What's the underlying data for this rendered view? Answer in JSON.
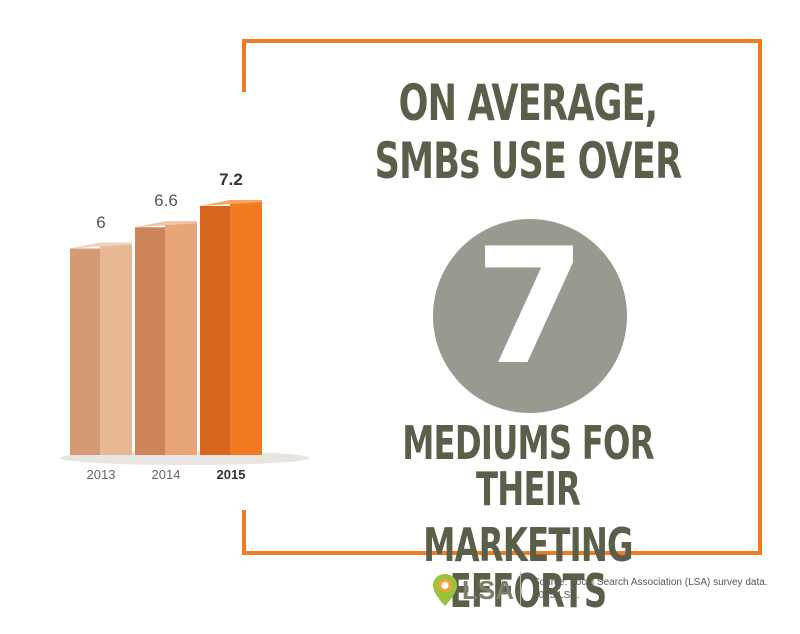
{
  "headline": {
    "top_lines": [
      "ON AVERAGE,",
      "SMBs USE OVER"
    ],
    "big_number": "7",
    "bottom_lines": [
      "MEDIUMS FOR THEIR",
      "MARKETING EFFORTS"
    ]
  },
  "footer": {
    "logo_text": "LSA",
    "source_line1": "Source: Local Search Association (LSA) survey data.",
    "source_line2": "2015 LSA."
  },
  "colors": {
    "accent": "#ef7b23",
    "text": "#5b5f4a",
    "circle": "#999a8f",
    "logo_green": "#9bc23c",
    "logo_gray": "#7a7f6e"
  },
  "chart_data": {
    "type": "bar",
    "categories": [
      "2013",
      "2014",
      "2015"
    ],
    "values": [
      6,
      6.6,
      7.2
    ],
    "value_labels": [
      "6",
      "6.6",
      "7.2"
    ],
    "title": "",
    "xlabel": "",
    "ylabel": "",
    "ylim": [
      0,
      8
    ],
    "grid": false,
    "legend": "none",
    "bar_colors": [
      {
        "front": "#e7b894",
        "side": "#d49a73",
        "top": "#eed2bb"
      },
      {
        "front": "#e9a57a",
        "side": "#cc8458",
        "top": "#f0c5a6"
      },
      {
        "front": "#f27a20",
        "side": "#d8651c",
        "top": "#f6a566"
      }
    ],
    "highlight_index": 2
  }
}
